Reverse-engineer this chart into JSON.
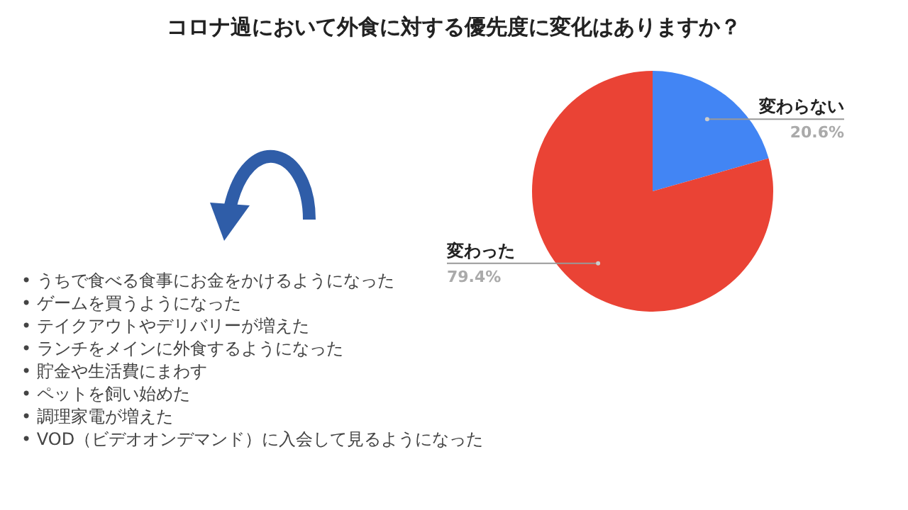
{
  "chart_data": {
    "type": "pie",
    "title": "コロナ過において外食に対する優先度に変化はありますか？",
    "categories": [
      "変わらない",
      "変わった"
    ],
    "values": [
      20.6,
      79.4
    ],
    "value_labels": [
      "20.6%",
      "79.4%"
    ],
    "colors": [
      "#4285f4",
      "#ea4335"
    ],
    "legend": false,
    "annotations": [
      "• うちで食べる食事にお金をかけるようになった",
      "• ゲームを買うようになった",
      "• テイクアウトやデリバリーが増えた",
      "• ランチをメインに外食するようになった",
      "• 貯金や生活費にまわす",
      "• ペットを飼い始めた",
      "• 調理家電が増えた",
      "• VOD（ビデオオンデマンド）に入会して見るようになった"
    ]
  }
}
